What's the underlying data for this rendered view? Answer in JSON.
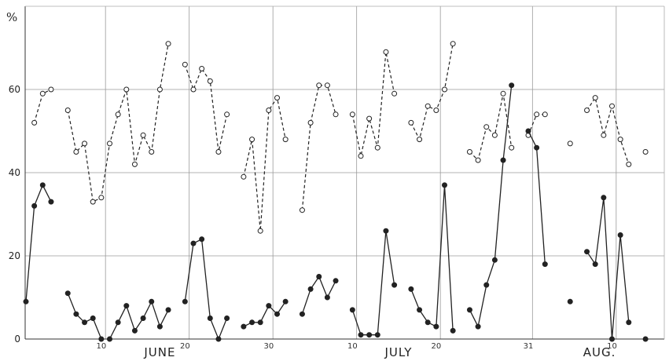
{
  "chart_data": {
    "type": "line",
    "title": "",
    "xlabel": "",
    "ylabel": "",
    "y_unit_label": "%",
    "ylim": [
      0,
      76
    ],
    "yticks": [
      0,
      20,
      40,
      60
    ],
    "xlim": [
      0,
      74.5
    ],
    "x_ticks": [
      {
        "x": 9,
        "label": "10"
      },
      {
        "x": 19,
        "label": "20"
      },
      {
        "x": 29,
        "label": "30"
      },
      {
        "x": 39,
        "label": "10"
      },
      {
        "x": 49,
        "label": "20"
      },
      {
        "x": 60,
        "label": "31"
      },
      {
        "x": 70,
        "label": "10"
      }
    ],
    "month_labels": [
      {
        "x": 16,
        "label": "JUNE"
      },
      {
        "x": 44.5,
        "label": "JULY"
      },
      {
        "x": 68.5,
        "label": "AUG."
      }
    ],
    "vertical_gridlines_x": [
      9.5,
      19.5,
      29.5,
      39.5,
      49.5,
      60.5,
      70.5
    ],
    "grid": true,
    "series": [
      {
        "style": "dashed",
        "marker": "open-circle",
        "color": "#222222",
        "segments": [
          [
            [
              1,
              52
            ],
            [
              2,
              59
            ],
            [
              3,
              60
            ]
          ],
          [
            [
              5,
              55
            ],
            [
              6,
              45
            ],
            [
              7,
              47
            ],
            [
              8,
              33
            ],
            [
              9,
              34
            ],
            [
              10,
              47
            ],
            [
              11,
              54
            ],
            [
              12,
              60
            ],
            [
              13,
              42
            ],
            [
              14,
              49
            ],
            [
              15,
              45
            ],
            [
              16,
              60
            ],
            [
              17,
              71
            ]
          ],
          [
            [
              19,
              66
            ],
            [
              20,
              60
            ],
            [
              21,
              65
            ],
            [
              22,
              62
            ],
            [
              23,
              45
            ],
            [
              24,
              54
            ]
          ],
          [
            [
              26,
              39
            ],
            [
              27,
              48
            ],
            [
              28,
              26
            ],
            [
              29,
              55
            ],
            [
              30,
              58
            ],
            [
              31,
              48
            ]
          ],
          [
            [
              33,
              31
            ],
            [
              34,
              52
            ],
            [
              35,
              61
            ],
            [
              36,
              61
            ],
            [
              37,
              54
            ]
          ],
          [
            [
              39,
              54
            ],
            [
              40,
              44
            ],
            [
              41,
              53
            ],
            [
              42,
              46
            ],
            [
              43,
              69
            ],
            [
              44,
              59
            ]
          ],
          [
            [
              46,
              52
            ],
            [
              47,
              48
            ],
            [
              48,
              56
            ],
            [
              49,
              55
            ],
            [
              50,
              60
            ],
            [
              51,
              71
            ]
          ],
          [
            [
              53,
              45
            ],
            [
              54,
              43
            ],
            [
              55,
              51
            ],
            [
              56,
              49
            ],
            [
              57,
              59
            ],
            [
              58,
              46
            ]
          ],
          [
            [
              60,
              49
            ],
            [
              61,
              54
            ],
            [
              62,
              54
            ]
          ],
          [
            [
              65,
              47
            ]
          ],
          [
            [
              67,
              55
            ],
            [
              68,
              58
            ],
            [
              69,
              49
            ],
            [
              70,
              56
            ],
            [
              71,
              48
            ],
            [
              72,
              42
            ]
          ],
          [
            [
              74,
              45
            ]
          ]
        ]
      },
      {
        "style": "solid",
        "marker": "filled-circle",
        "color": "#222222",
        "segments": [
          [
            [
              0,
              9
            ],
            [
              1,
              32
            ],
            [
              2,
              37
            ],
            [
              3,
              33
            ]
          ],
          [
            [
              5,
              11
            ],
            [
              6,
              6
            ],
            [
              7,
              4
            ],
            [
              8,
              5
            ],
            [
              9,
              0
            ]
          ],
          [
            [
              10,
              0
            ],
            [
              11,
              4
            ],
            [
              12,
              8
            ],
            [
              13,
              2
            ],
            [
              14,
              5
            ],
            [
              15,
              9
            ],
            [
              16,
              3
            ],
            [
              17,
              7
            ]
          ],
          [
            [
              19,
              9
            ],
            [
              20,
              23
            ],
            [
              21,
              24
            ],
            [
              22,
              5
            ],
            [
              23,
              0
            ],
            [
              24,
              5
            ]
          ],
          [
            [
              26,
              3
            ],
            [
              27,
              4
            ],
            [
              28,
              4
            ],
            [
              29,
              8
            ],
            [
              30,
              6
            ],
            [
              31,
              9
            ]
          ],
          [
            [
              33,
              6
            ],
            [
              34,
              12
            ],
            [
              35,
              15
            ],
            [
              36,
              10
            ],
            [
              37,
              14
            ]
          ],
          [
            [
              39,
              7
            ],
            [
              40,
              1
            ],
            [
              41,
              1
            ],
            [
              42,
              1
            ],
            [
              43,
              26
            ],
            [
              44,
              13
            ]
          ],
          [
            [
              46,
              12
            ],
            [
              47,
              7
            ],
            [
              48,
              4
            ],
            [
              49,
              3
            ],
            [
              50,
              37
            ],
            [
              51,
              2
            ]
          ],
          [
            [
              53,
              7
            ],
            [
              54,
              3
            ],
            [
              55,
              13
            ],
            [
              56,
              19
            ],
            [
              57,
              43
            ],
            [
              58,
              61
            ]
          ],
          [
            [
              60,
              50
            ],
            [
              61,
              46
            ],
            [
              62,
              18
            ]
          ],
          [
            [
              65,
              9
            ]
          ],
          [
            [
              67,
              21
            ],
            [
              68,
              18
            ],
            [
              69,
              34
            ],
            [
              70,
              0
            ],
            [
              71,
              25
            ],
            [
              72,
              4
            ]
          ],
          [
            [
              74,
              0
            ]
          ]
        ]
      }
    ]
  }
}
